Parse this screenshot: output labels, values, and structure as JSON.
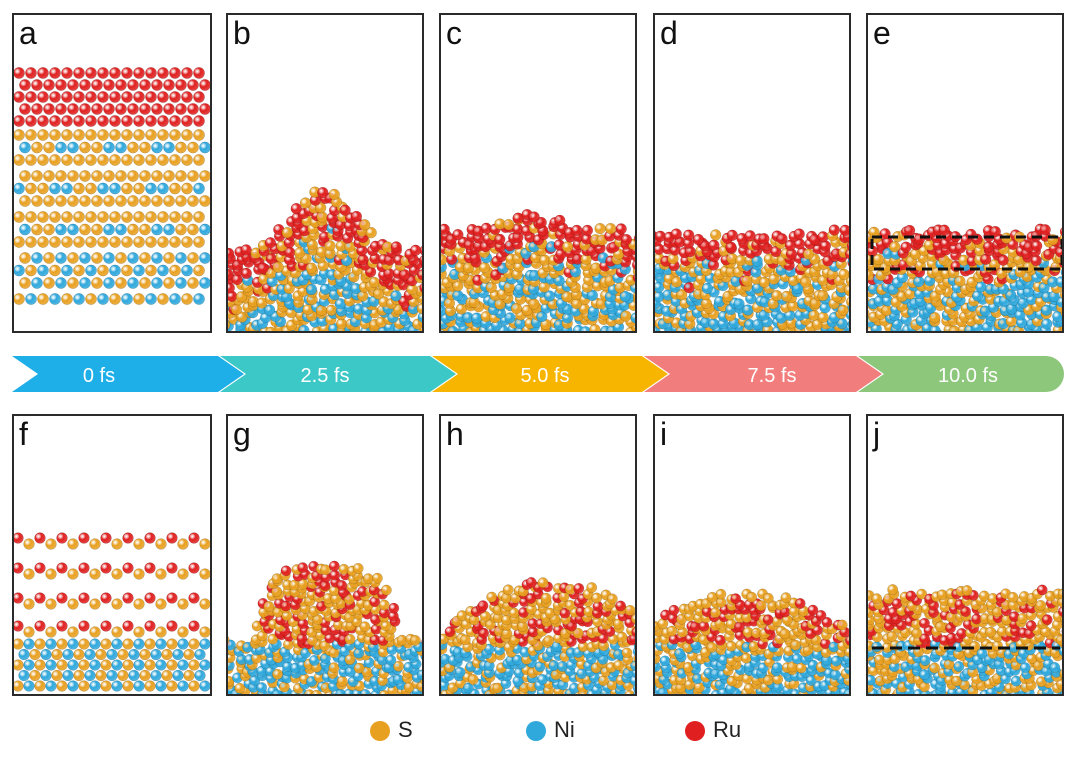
{
  "panels_top": [
    {
      "label": "a"
    },
    {
      "label": "b"
    },
    {
      "label": "c"
    },
    {
      "label": "d"
    },
    {
      "label": "e"
    }
  ],
  "panels_bottom": [
    {
      "label": "f"
    },
    {
      "label": "g"
    },
    {
      "label": "h"
    },
    {
      "label": "i"
    },
    {
      "label": "j"
    }
  ],
  "timeline": [
    {
      "label": "0 fs",
      "color": "#1eaee8"
    },
    {
      "label": "2.5 fs",
      "color": "#3cc8c6"
    },
    {
      "label": "5.0 fs",
      "color": "#f8b500"
    },
    {
      "label": "7.5 fs",
      "color": "#f17d7d"
    },
    {
      "label": "10.0 fs",
      "color": "#8dc77b"
    }
  ],
  "legend": [
    {
      "label": "S",
      "color": "#e8a020",
      "icon": "sulfur-atom-icon"
    },
    {
      "label": "Ni",
      "color": "#2fa8dc",
      "icon": "nickel-atom-icon"
    },
    {
      "label": "Ru",
      "color": "#e02020",
      "icon": "ruthenium-atom-icon"
    }
  ],
  "colors": {
    "S": "#e8a020",
    "Ni": "#2fa8dc",
    "Ru": "#e02020",
    "frame": "#2a2a2a"
  }
}
